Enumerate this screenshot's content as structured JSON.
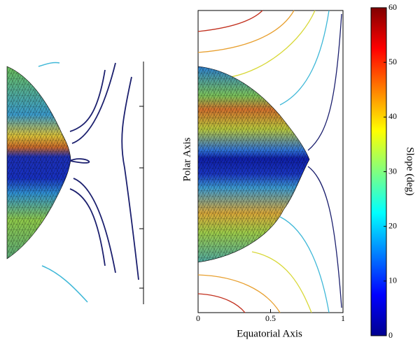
{
  "chart_data": {
    "type": "surface",
    "xlabel": "Equatorial Axis",
    "ylabel": "Polar Axis",
    "xlim": [
      0,
      1
    ],
    "xticks": [
      0,
      0.5,
      1
    ],
    "colorbar": {
      "label": "Slope (deg)",
      "lim": [
        0,
        60
      ],
      "ticks": [
        0,
        10,
        20,
        30,
        40,
        50,
        60
      ],
      "colormap": "jet"
    }
  }
}
